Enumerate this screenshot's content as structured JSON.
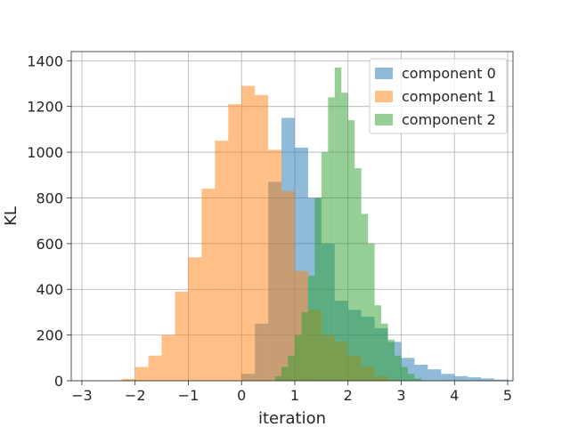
{
  "chart_data": {
    "type": "histogram",
    "xlabel": "iteration",
    "ylabel": "KL",
    "xlim": [
      -3.2,
      5.1
    ],
    "ylim": [
      0,
      1440
    ],
    "xticks": [
      -3,
      -2,
      -1,
      0,
      1,
      2,
      3,
      4,
      5
    ],
    "yticks": [
      0,
      200,
      400,
      600,
      800,
      1000,
      1200,
      1400
    ],
    "grid": true,
    "legend": {
      "position": "top-right"
    },
    "series": [
      {
        "name": "component 0",
        "color": "#1f77b4",
        "alpha": 0.5,
        "bin_width": 0.25,
        "bins": [
          [
            -0.5,
            0
          ],
          [
            -0.25,
            0
          ],
          [
            0.0,
            30
          ],
          [
            0.25,
            250
          ],
          [
            0.5,
            870
          ],
          [
            0.75,
            1150
          ],
          [
            1.0,
            1020
          ],
          [
            1.25,
            800
          ],
          [
            1.5,
            600
          ],
          [
            1.75,
            350
          ],
          [
            2.0,
            310
          ],
          [
            2.25,
            280
          ],
          [
            2.5,
            230
          ],
          [
            2.75,
            170
          ],
          [
            3.0,
            100
          ],
          [
            3.25,
            70
          ],
          [
            3.5,
            50
          ],
          [
            3.75,
            30
          ],
          [
            4.0,
            20
          ],
          [
            4.25,
            15
          ],
          [
            4.5,
            10
          ],
          [
            4.75,
            5
          ]
        ]
      },
      {
        "name": "component 1",
        "color": "#ff7f0e",
        "alpha": 0.5,
        "bin_width": 0.25,
        "bins": [
          [
            -2.25,
            8
          ],
          [
            -2.0,
            60
          ],
          [
            -1.75,
            110
          ],
          [
            -1.5,
            200
          ],
          [
            -1.25,
            390
          ],
          [
            -1.0,
            540
          ],
          [
            -0.75,
            840
          ],
          [
            -0.5,
            1050
          ],
          [
            -0.25,
            1210
          ],
          [
            0.0,
            1290
          ],
          [
            0.25,
            1250
          ],
          [
            0.5,
            1010
          ],
          [
            0.75,
            830
          ],
          [
            1.0,
            480
          ],
          [
            1.25,
            310
          ],
          [
            1.5,
            200
          ],
          [
            1.75,
            170
          ],
          [
            2.0,
            110
          ],
          [
            2.25,
            60
          ],
          [
            2.5,
            20
          ],
          [
            2.75,
            5
          ]
        ]
      },
      {
        "name": "component 2",
        "color": "#2ca02c",
        "alpha": 0.5,
        "bin_width": 0.125,
        "bins": [
          [
            0.625,
            20
          ],
          [
            0.75,
            60
          ],
          [
            0.875,
            110
          ],
          [
            1.0,
            200
          ],
          [
            1.125,
            300
          ],
          [
            1.25,
            460
          ],
          [
            1.375,
            800
          ],
          [
            1.5,
            1000
          ],
          [
            1.625,
            1240
          ],
          [
            1.75,
            1370
          ],
          [
            1.875,
            1260
          ],
          [
            2.0,
            1140
          ],
          [
            2.125,
            930
          ],
          [
            2.25,
            730
          ],
          [
            2.375,
            600
          ],
          [
            2.5,
            330
          ],
          [
            2.625,
            250
          ],
          [
            2.75,
            180
          ],
          [
            2.875,
            110
          ],
          [
            3.0,
            60
          ],
          [
            3.125,
            30
          ],
          [
            3.25,
            10
          ]
        ]
      }
    ]
  }
}
